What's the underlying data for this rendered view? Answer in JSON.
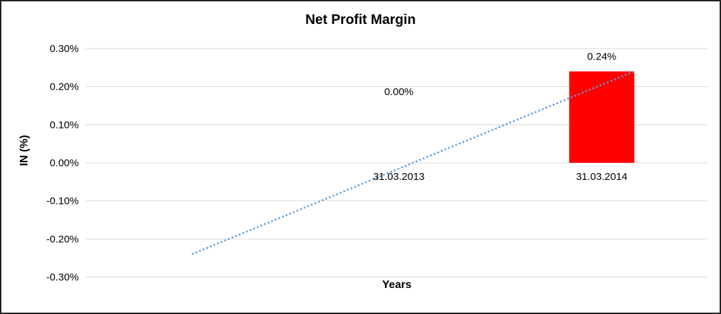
{
  "chart": {
    "border_color": "#222222",
    "background": "#ffffff",
    "grid_color": "#d9d9d9",
    "text_color": "#000000"
  },
  "chart_data": {
    "type": "bar",
    "title": "Net Profit Margin",
    "xlabel": "Years",
    "ylabel": "IN (%)",
    "categories": [
      "31.03.2013",
      "31.03.2014"
    ],
    "values": [
      0.0,
      0.24
    ],
    "value_unit": "%",
    "data_labels": [
      "0.00%",
      "0.24%"
    ],
    "ylim": [
      -0.3,
      0.3
    ],
    "ytick_step": 0.1,
    "ytick_labels": [
      "0.30%",
      "0.20%",
      "0.10%",
      "0.00%",
      "-0.10%",
      "-0.20%",
      "-0.30%"
    ],
    "grid": true,
    "legend": "none",
    "bar_color": "#ff0000",
    "trendline": {
      "type": "linear",
      "style": "dotted",
      "color": "#5b9bd5",
      "start_value": -0.24,
      "end_value": 0.24
    }
  }
}
